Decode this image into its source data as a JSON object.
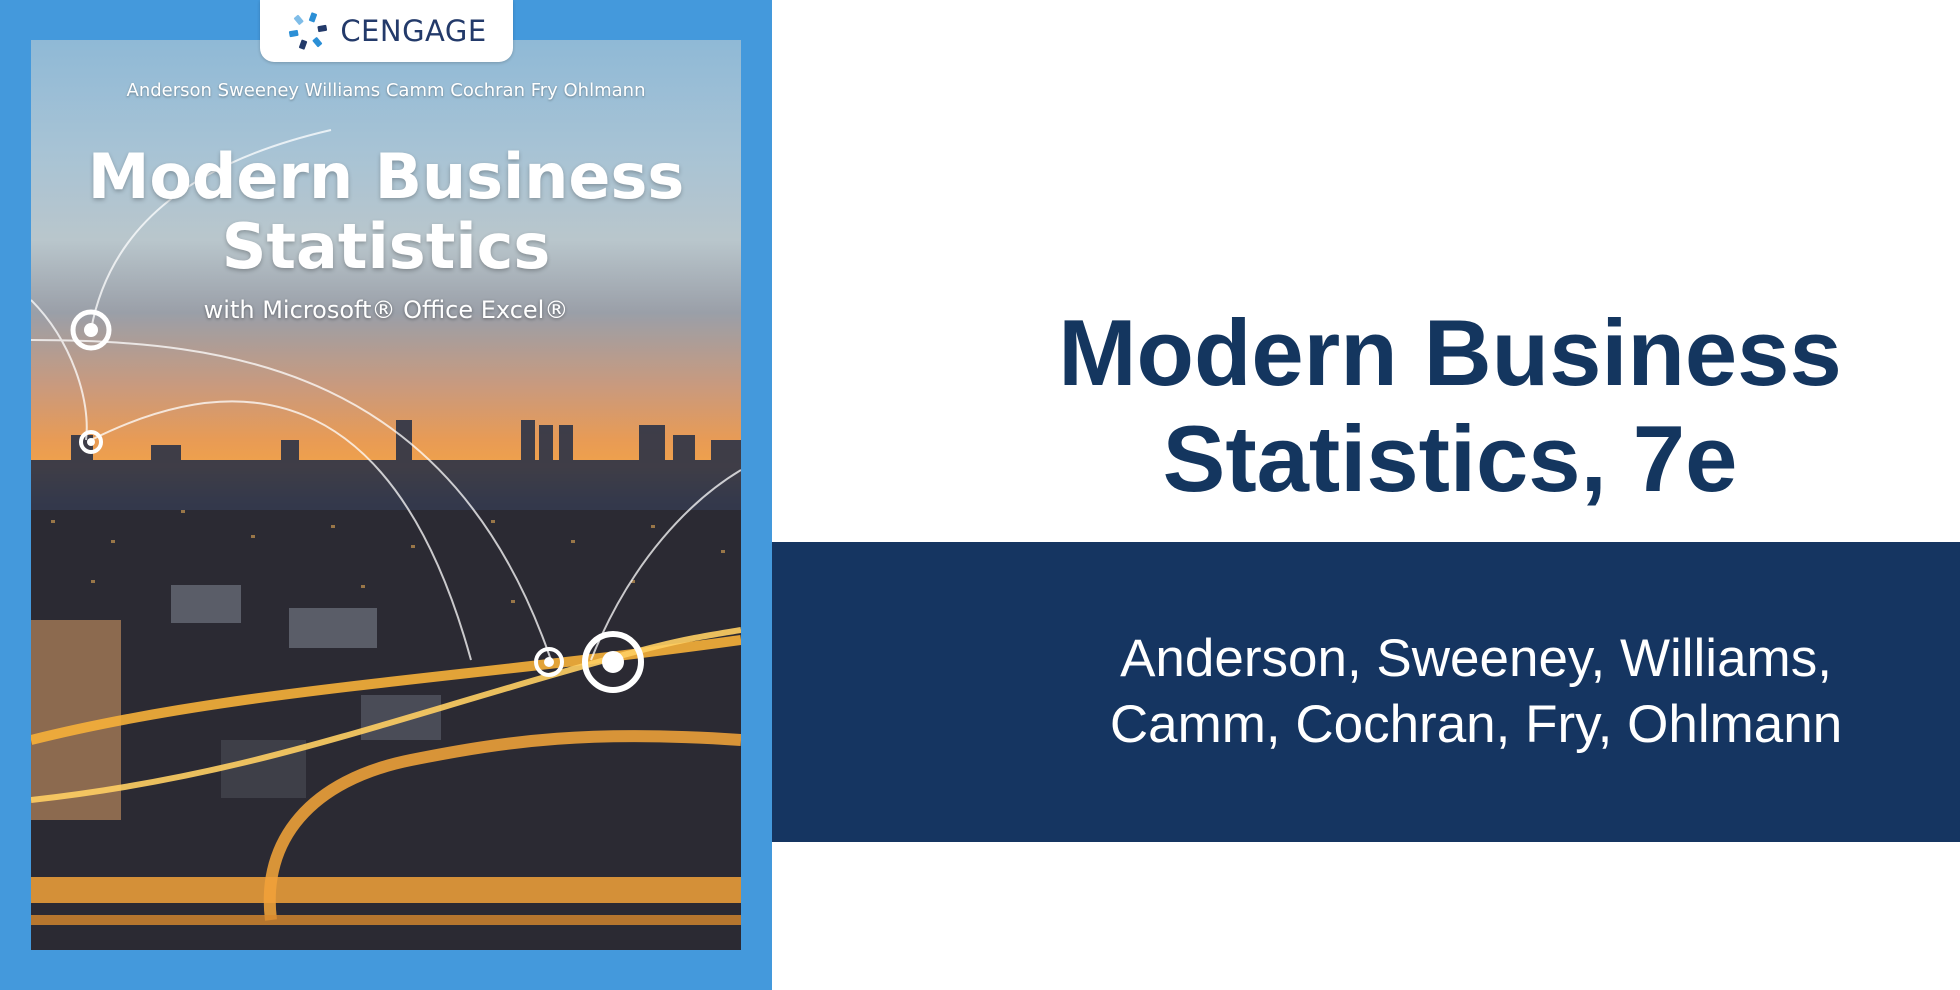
{
  "cover": {
    "publisher": "CENGAGE",
    "authors": "Anderson  Sweeney  Williams  Camm  Cochran  Fry  Ohlmann",
    "title_line1": "Modern Business",
    "title_line2": "Statistics",
    "subtitle": "with Microsoft® Office Excel®",
    "logo_icon": "cengage-logo-icon",
    "panel_color": "#4499dc"
  },
  "main": {
    "title_line1": "Modern Business",
    "title_line2": "Statistics, 7e",
    "authors_line1": "Anderson, Sweeney, Williams,",
    "authors_line2": "Camm, Cochran, Fry, Ohlmann",
    "title_color": "#14365f",
    "band_color": "#153561"
  }
}
